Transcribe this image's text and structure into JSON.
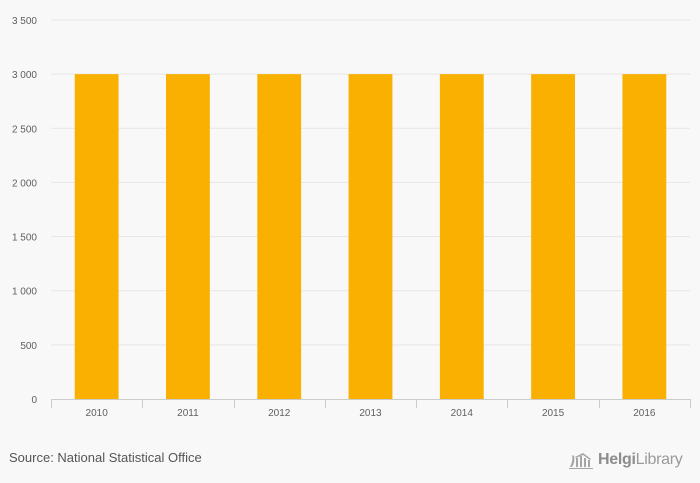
{
  "chart_data": {
    "type": "bar",
    "categories": [
      "2010",
      "2011",
      "2012",
      "2013",
      "2014",
      "2015",
      "2016"
    ],
    "values": [
      3000,
      3000,
      3000,
      3000,
      3000,
      3000,
      3000
    ],
    "yticks": [
      "0",
      "500",
      "1 000",
      "1 500",
      "2 000",
      "2 500",
      "3 000",
      "3 500"
    ],
    "ytick_values": [
      0,
      500,
      1000,
      1500,
      2000,
      2500,
      3000,
      3500
    ],
    "ylim": [
      0,
      3500
    ],
    "title": "",
    "xlabel": "",
    "ylabel": "",
    "grid": true,
    "bar_color": "#f9b000",
    "grid_color": "#e6e6e6",
    "axis_color": "#cccccc"
  },
  "footer": {
    "source": "Source: National Statistical Office",
    "logo_text_bold": "Helgi",
    "logo_text_rest": "Library"
  }
}
